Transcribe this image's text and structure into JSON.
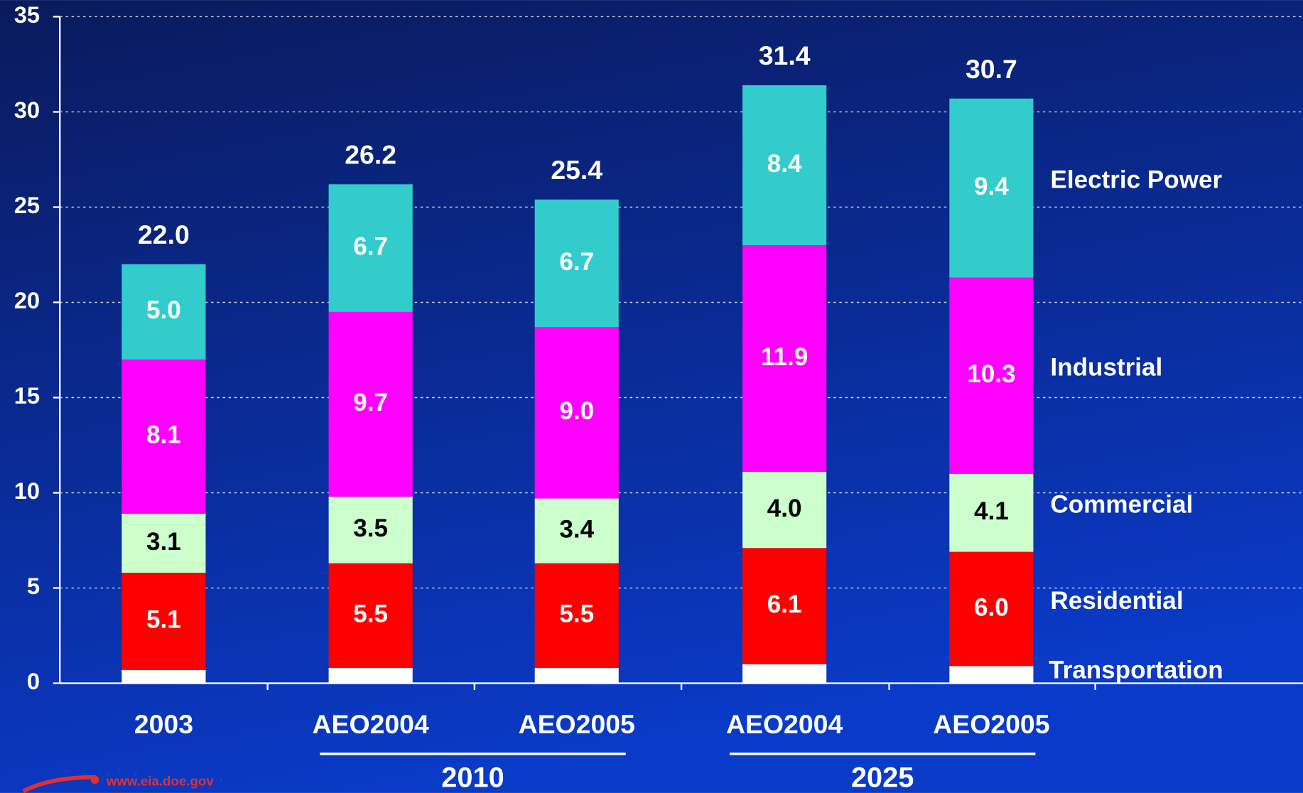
{
  "chart_data": {
    "type": "stacked_bar",
    "categories": [
      "2003",
      "AEO2004",
      "AEO2005",
      "AEO2004",
      "AEO2005"
    ],
    "group_labels": [
      "2010",
      "2025"
    ],
    "series": [
      {
        "name": "Transportation",
        "color": "#ffffff",
        "values": [
          0.7,
          0.8,
          0.8,
          1.0,
          0.9
        ]
      },
      {
        "name": "Residential",
        "color": "#ff0000",
        "label_color": "#ffffff",
        "values": [
          5.1,
          5.5,
          5.5,
          6.1,
          6.0
        ],
        "value_labels": [
          "5.1",
          "5.5",
          "5.5",
          "6.1",
          "6.0"
        ]
      },
      {
        "name": "Commercial",
        "color": "#ccffcc",
        "label_color": "#000000",
        "values": [
          3.1,
          3.5,
          3.4,
          4.0,
          4.1
        ],
        "value_labels": [
          "3.1",
          "3.5",
          "3.4",
          "4.0",
          "4.1"
        ]
      },
      {
        "name": "Industrial",
        "color": "#ff00ff",
        "label_color": "#ffffff",
        "values": [
          8.1,
          9.7,
          9.0,
          11.9,
          10.3
        ],
        "value_labels": [
          "8.1",
          "9.7",
          "9.0",
          "11.9",
          "10.3"
        ]
      },
      {
        "name": "Electric Power",
        "color": "#33cccc",
        "label_color": "#ffffff",
        "values": [
          5.0,
          6.7,
          6.7,
          8.4,
          9.4
        ],
        "value_labels": [
          "5.0",
          "6.7",
          "6.7",
          "8.4",
          "9.4"
        ]
      }
    ],
    "totals": [
      22.0,
      26.2,
      25.4,
      31.4,
      30.7
    ],
    "total_labels": [
      "22.0",
      "26.2",
      "25.4",
      "31.4",
      "30.7"
    ],
    "ylim": [
      0,
      35
    ],
    "yticks": [
      0,
      5,
      10,
      15,
      20,
      25,
      30,
      35
    ],
    "grid": true,
    "footer": "www.eia.doe.gov"
  }
}
